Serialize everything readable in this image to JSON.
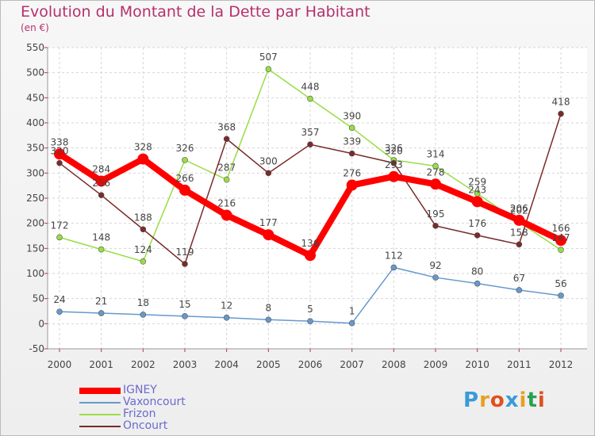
{
  "title": "Evolution du Montant de la Dette par Habitant",
  "subtitle": "(en €)",
  "logo": "Proxiti",
  "chart_data": {
    "type": "line",
    "title": "Evolution du Montant de la Dette par Habitant",
    "ylabel": "(en €)",
    "xlabel": "",
    "categories": [
      "2000",
      "2001",
      "2002",
      "2003",
      "2004",
      "2005",
      "2006",
      "2007",
      "2008",
      "2009",
      "2010",
      "2011",
      "2012"
    ],
    "ylim": [
      -50,
      550
    ],
    "yticks": [
      -50,
      0,
      50,
      100,
      150,
      200,
      250,
      300,
      350,
      400,
      450,
      500,
      550
    ],
    "grid": true,
    "legend_position": "bottom-left",
    "series": [
      {
        "name": "IGNEY",
        "color": "#ff0000",
        "values": [
          338,
          284,
          328,
          266,
          216,
          177,
          136,
          276,
          293,
          278,
          243,
          206,
          166
        ]
      },
      {
        "name": "Vaxoncourt",
        "color": "#6699cc",
        "values": [
          24,
          21,
          18,
          15,
          12,
          8,
          5,
          1,
          112,
          92,
          80,
          67,
          56
        ]
      },
      {
        "name": "Frizon",
        "color": "#99dd44",
        "values": [
          172,
          148,
          124,
          326,
          287,
          507,
          448,
          390,
          326,
          314,
          259,
          202,
          147
        ]
      },
      {
        "name": "Oncourt",
        "color": "#7a2a2a",
        "values": [
          320,
          256,
          188,
          119,
          368,
          300,
          357,
          339,
          320,
          195,
          176,
          158,
          418
        ]
      }
    ]
  }
}
